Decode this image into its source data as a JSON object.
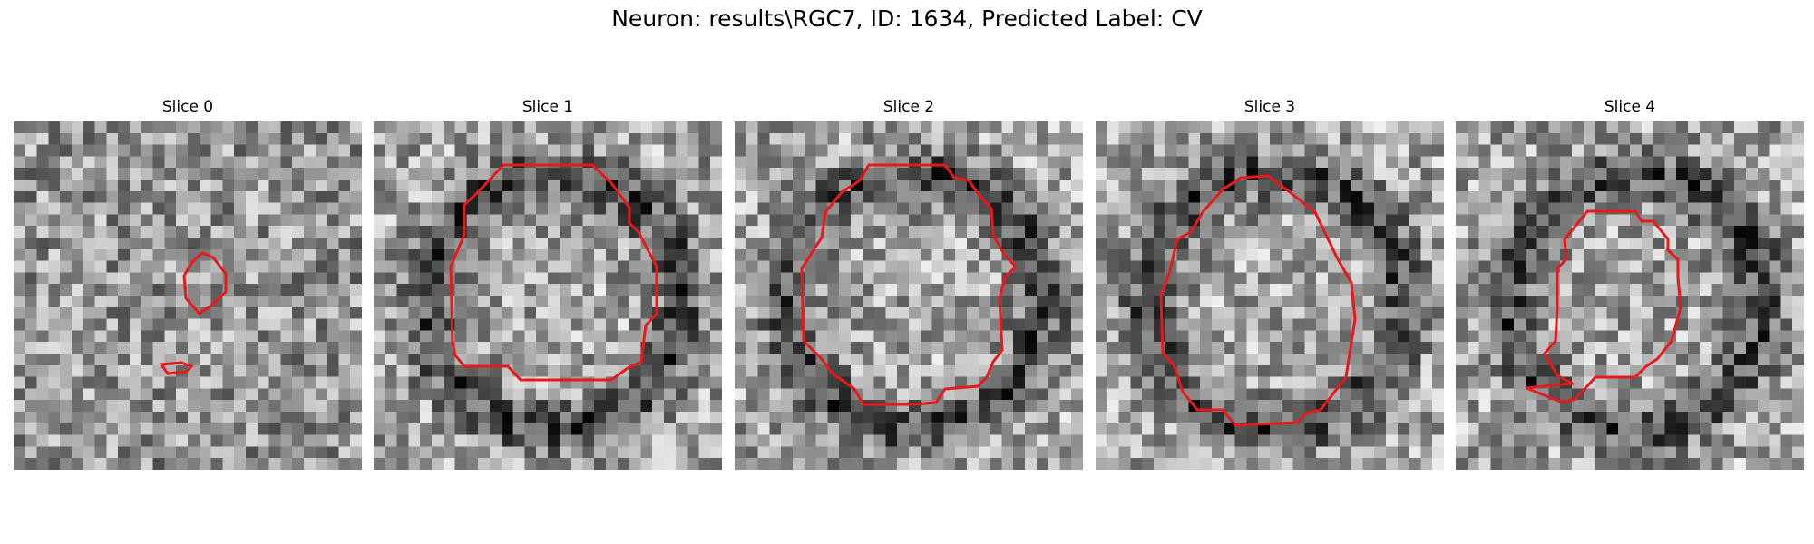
{
  "figure": {
    "title": "Neuron: results\\RGC7, ID: 1634, Predicted Label: CV",
    "colormap": "grayscale",
    "contour_color": "#e8191c",
    "panels": [
      {
        "title": "Slice 0"
      },
      {
        "title": "Slice 1"
      },
      {
        "title": "Slice 2"
      },
      {
        "title": "Slice 3"
      },
      {
        "title": "Slice 4"
      }
    ]
  }
}
